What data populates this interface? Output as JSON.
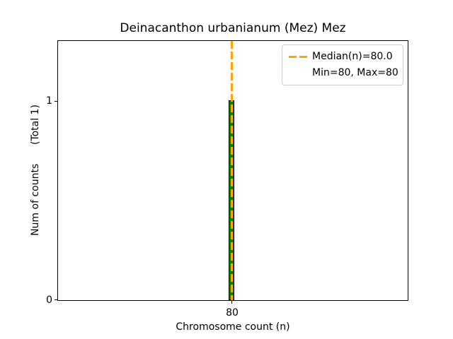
{
  "figure": {
    "title": "Deinacanthon urbanianum (Mez) Mez",
    "xlabel": "Chromosome count (n)",
    "ylabel": "Num of counts      (Total 1)",
    "x_ticks": [
      "80"
    ],
    "y_ticks": [
      "0",
      "1"
    ],
    "legend": {
      "median_label": "Median(n)=80.0",
      "minmax_label": "Min=80, Max=80"
    },
    "colors": {
      "bar_fill": "#008000",
      "bar_edge": "#000000",
      "median_line": "#FFA500",
      "legend_border": "#cccccc",
      "axes_spines": "#000000"
    }
  },
  "chart_data": {
    "type": "bar",
    "title": "Deinacanthon urbanianum (Mez) Mez",
    "xlabel": "Chromosome count (n)",
    "ylabel": "Num of counts (Total 1)",
    "categories": [
      80
    ],
    "values": [
      1
    ],
    "total_counts": 1,
    "median_n": 80.0,
    "min_n": 80,
    "max_n": 80,
    "x_tick_labels": [
      "80"
    ],
    "y_tick_labels": [
      "0",
      "1"
    ],
    "ylim": [
      0,
      1.3
    ],
    "bar_color": "#008000",
    "bar_edge_color": "#000000",
    "median_line_color": "#FFA500",
    "median_line_style": "dashed",
    "legend_position": "upper right",
    "legend_entries": [
      "Median(n)=80.0",
      "Min=80, Max=80"
    ],
    "grid": false
  }
}
